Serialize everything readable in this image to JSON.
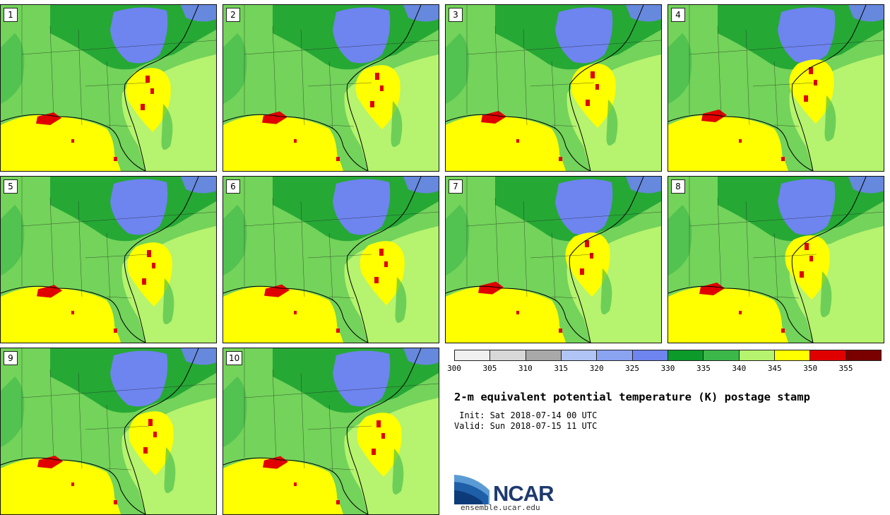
{
  "figure": {
    "title": "2-m equivalent potential temperature (K) postage stamp",
    "init": " Init: Sat 2018-07-14 00 UTC",
    "valid": "Valid: Sun 2018-07-15 11 UTC",
    "site": "ensemble.ucar.edu",
    "logo_text": "NCAR"
  },
  "members": [
    "1",
    "2",
    "3",
    "4",
    "5",
    "6",
    "7",
    "8",
    "9",
    "10"
  ],
  "colorbar": {
    "ticks": [
      "300",
      "305",
      "310",
      "315",
      "320",
      "325",
      "330",
      "335",
      "340",
      "345",
      "350",
      "355"
    ],
    "colors": [
      "#f0f0f0",
      "#d8d8d8",
      "#a9a9a9",
      "#b0c4f5",
      "#8aa4f2",
      "#6e84ef",
      "#0c9a2a",
      "#3cb84a",
      "#b6f36e",
      "#ffff00",
      "#e00000",
      "#7a0000"
    ]
  },
  "palette": {
    "ocean_bg": "#b6f36e",
    "land_green": "#3cb84a",
    "dark_green": "#0c9a2a",
    "cool_blue": "#6e84ef",
    "warm_yellow": "#ffff00",
    "hot_red": "#e00000",
    "coast": "#000000"
  }
}
